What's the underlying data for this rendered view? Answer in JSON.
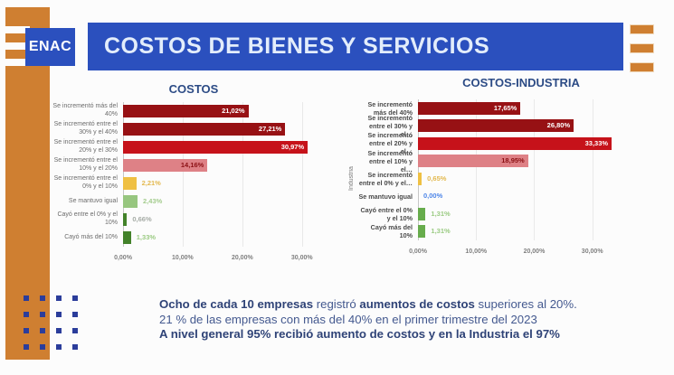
{
  "colors": {
    "accent_orange": "#CF7F31",
    "brand_blue": "#2B50BE",
    "dot_blue": "#2B3D9B"
  },
  "header": {
    "logo_text": "ENAC",
    "title": "COSTOS DE BIENES Y SERVICIOS"
  },
  "chart_data": [
    {
      "type": "bar",
      "title": "COSTOS",
      "y_axis_label": "",
      "orientation": "horizontal",
      "grid": true,
      "xlim": [
        0,
        35.5
      ],
      "tick_values": [
        0,
        10,
        20,
        30
      ],
      "x_ticks": [
        "0,00%",
        "10,00%",
        "20,00%",
        "30,00%"
      ],
      "rows": [
        {
          "label": "Se incrementó más del 40%",
          "value": 21.02,
          "display": "21,02%",
          "bar_color": "#971114",
          "value_pos": "in",
          "value_color": "#FFFFFF"
        },
        {
          "label": "Se incrementó entre el 30% y el 40%",
          "value": 27.21,
          "display": "27,21%",
          "bar_color": "#971114",
          "value_pos": "in",
          "value_color": "#FFFFFF"
        },
        {
          "label": "Se incrementó entre el 20% y el 30%",
          "value": 30.97,
          "display": "30,97%",
          "bar_color": "#C6121A",
          "value_pos": "in",
          "value_color": "#FFFFFF"
        },
        {
          "label": "Se incrementó entre el 10% y el 20%",
          "value": 14.16,
          "display": "14,16%",
          "bar_color": "#DE8186",
          "value_pos": "in",
          "value_color": "#8B1014"
        },
        {
          "label": "Se incrementó entre el 0% y el 10%",
          "value": 2.21,
          "display": "2,21%",
          "bar_color": "#EFC043",
          "value_pos": "out",
          "value_color": "#E3B94F"
        },
        {
          "label": "Se mantuvo igual",
          "value": 2.43,
          "display": "2,43%",
          "bar_color": "#97C67F",
          "value_pos": "out",
          "value_color": "#A4CC8E"
        },
        {
          "label": "Cayó entre el 0% y el 10%",
          "value": 0.66,
          "display": "0,66%",
          "bar_color": "#43822A",
          "value_pos": "out",
          "value_color": "#A5ABA5"
        },
        {
          "label": "Cayó más del 10%",
          "value": 1.33,
          "display": "1,33%",
          "bar_color": "#43822A",
          "value_pos": "out",
          "value_color": "#9BCB83"
        }
      ]
    },
    {
      "type": "bar",
      "title": "COSTOS-INDUSTRIA",
      "y_axis_label": "Industria",
      "orientation": "horizontal",
      "grid": true,
      "xlim": [
        0,
        35.5
      ],
      "tick_values": [
        0,
        10,
        20,
        30
      ],
      "x_ticks": [
        "0,00%",
        "10,00%",
        "20,00%",
        "30,00%"
      ],
      "rows": [
        {
          "label": "Se incrementó más del 40%",
          "value": 17.65,
          "display": "17,65%",
          "bar_color": "#971114",
          "value_pos": "in",
          "value_color": "#FFFFFF"
        },
        {
          "label": "Se incrementó entre el 30% y el…",
          "value": 26.8,
          "display": "26,80%",
          "bar_color": "#971114",
          "value_pos": "in",
          "value_color": "#FFFFFF"
        },
        {
          "label": "Se incrementó entre el 20% y el…",
          "value": 33.33,
          "display": "33,33%",
          "bar_color": "#C6121A",
          "value_pos": "in",
          "value_color": "#FFFFFF"
        },
        {
          "label": "Se incrementó entre el 10% y el…",
          "value": 18.95,
          "display": "18,95%",
          "bar_color": "#DE8186",
          "value_pos": "in",
          "value_color": "#8B1014"
        },
        {
          "label": "Se incrementó entre el 0% y el…",
          "value": 0.65,
          "display": "0,65%",
          "bar_color": "#EFC043",
          "value_pos": "out",
          "value_color": "#E3B94F"
        },
        {
          "label": "Se mantuvo igual",
          "value": 0.0,
          "display": "0,00%",
          "bar_color": "none",
          "value_pos": "out",
          "value_color": "#4E86E8"
        },
        {
          "label": "Cayó entre el 0% y el 10%",
          "value": 1.31,
          "display": "1,31%",
          "bar_color": "#67AC4C",
          "value_pos": "out",
          "value_color": "#9BCB83"
        },
        {
          "label": "Cayó más del 10%",
          "value": 1.31,
          "display": "1,31%",
          "bar_color": "#67AC4C",
          "value_pos": "out",
          "value_color": "#9BCB83"
        }
      ]
    }
  ],
  "footer": {
    "lines": [
      {
        "segments": [
          {
            "text": "Ocho de  cada 10 empresas",
            "bold": true
          },
          {
            "text": " registró ",
            "bold": false
          },
          {
            "text": "aumentos de costos",
            "bold": true
          },
          {
            "text": " superiores al 20%.",
            "bold": false
          }
        ]
      },
      {
        "segments": [
          {
            "text": "21 % de las empresas con más del 40% en el primer trimestre del 2023",
            "bold": false
          }
        ]
      },
      {
        "segments": [
          {
            "text": "A nivel general 95% recibió aumento de costos y en la Industria el 97%",
            "bold": true
          }
        ]
      }
    ]
  }
}
